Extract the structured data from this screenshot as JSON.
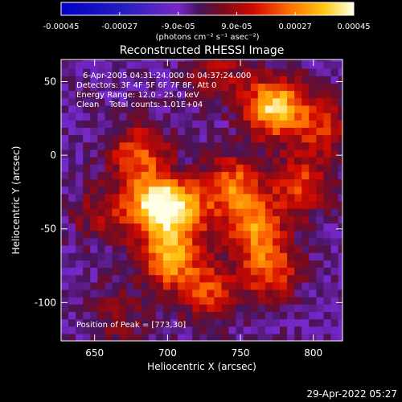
{
  "chart_data": {
    "type": "heatmap",
    "title": "Reconstructed RHESSI Image",
    "xlabel": "Heliocentric X (arcsec)",
    "ylabel": "Heliocentric Y (arcsec)",
    "xlim": [
      627,
      820
    ],
    "ylim": [
      -126,
      65
    ],
    "xticks": [
      650,
      700,
      750,
      800
    ],
    "yticks": [
      50,
      0,
      -50,
      -100
    ],
    "colorbar": {
      "min": -0.00045,
      "max": 0.00045,
      "ticks": [
        "-0.00045",
        "-0.00027",
        "-9.0e-05",
        "9.0e-05",
        "0.00027",
        "0.00045"
      ],
      "tick_values": [
        -0.00045,
        -0.00027,
        -9e-05,
        9e-05,
        0.00027,
        0.00045
      ],
      "unit_label": "(photons cm⁻² s⁻¹ asec⁻²)"
    },
    "annotations": [
      "6-Apr-2005 04:31:24.000 to 04:37:24.000",
      "Detectors: 3F 4F 5F 6F 7F 8F, Att 0",
      "Energy Range: 12.0 - 25.0 keV",
      "Clean    Total counts: 1.01E+04"
    ],
    "peak_label": "Position of Peak = [773,30]",
    "peak_position": [
      773,
      30
    ],
    "sources": [
      {
        "x": 773,
        "y": 33,
        "intensity": 0.00045
      },
      {
        "x": 690,
        "y": -32,
        "intensity": 0.0004
      },
      {
        "x": 710,
        "y": -38,
        "intensity": 0.00035
      },
      {
        "x": 700,
        "y": -70,
        "intensity": 0.00037
      },
      {
        "x": 745,
        "y": -20,
        "intensity": 0.0003
      },
      {
        "x": 760,
        "y": -48,
        "intensity": 0.00032
      },
      {
        "x": 770,
        "y": -78,
        "intensity": 0.00028
      },
      {
        "x": 680,
        "y": 2,
        "intensity": 0.00027
      },
      {
        "x": 728,
        "y": -92,
        "intensity": 0.00025
      },
      {
        "x": 792,
        "y": -20,
        "intensity": 0.00025
      },
      {
        "x": 805,
        "y": 20,
        "intensity": 0.00022
      },
      {
        "x": 655,
        "y": -40,
        "intensity": 0.00015
      },
      {
        "x": 735,
        "y": 55,
        "intensity": 0.00015
      },
      {
        "x": 665,
        "y": -108,
        "intensity": 0.00012
      }
    ]
  },
  "timestamp": "29-Apr-2022 05:27"
}
